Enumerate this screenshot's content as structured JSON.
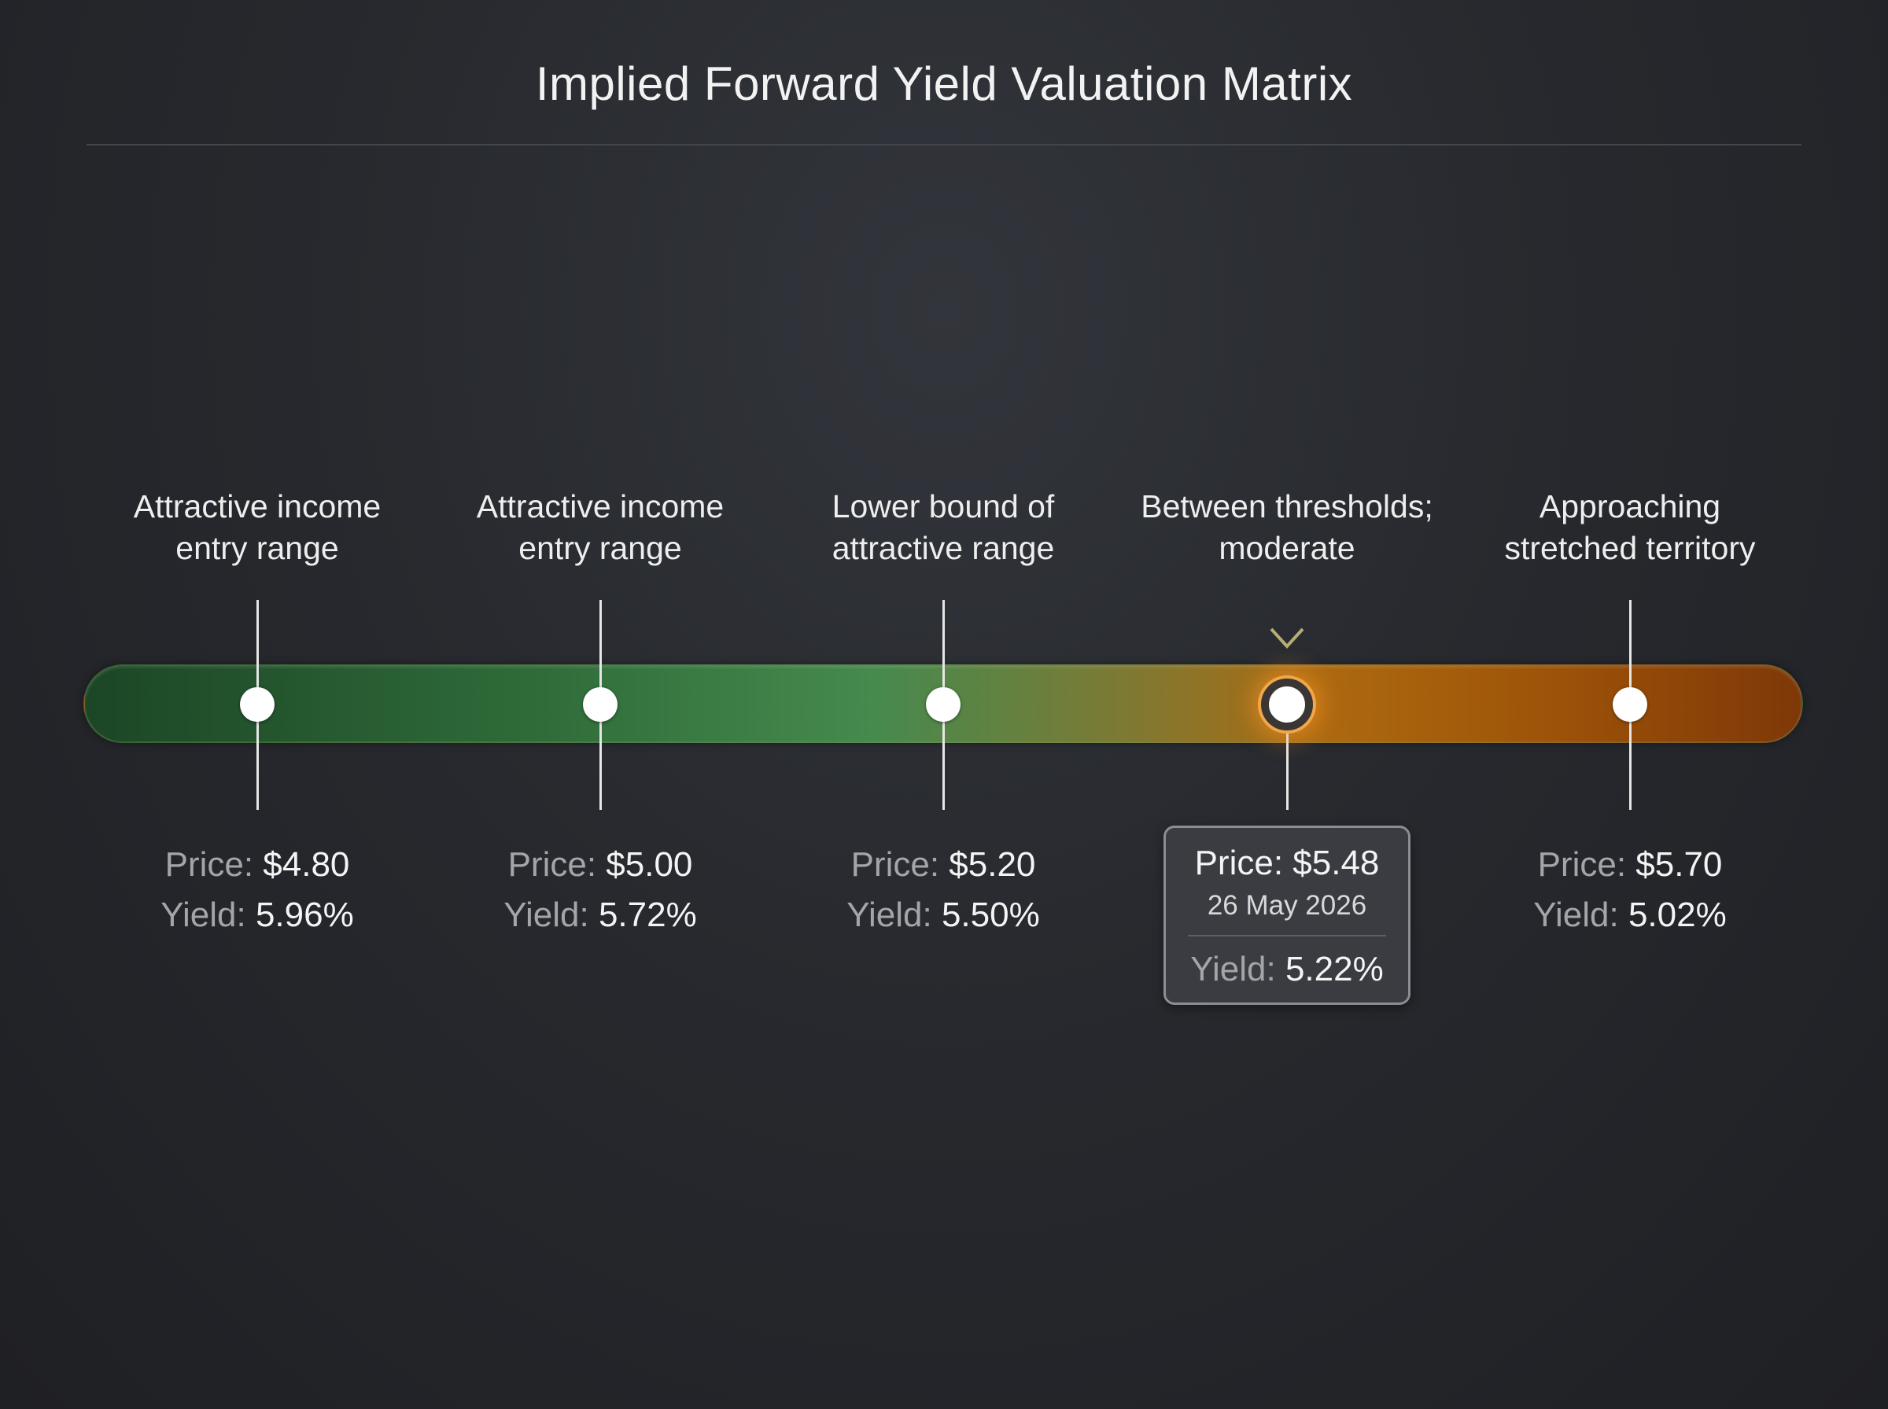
{
  "title": "Implied Forward Yield Valuation Matrix",
  "colors": {
    "background": "#27292e",
    "attractive": "#2f6b39",
    "moderate": "#7b7a35",
    "stretched": "#9c5208",
    "highlight": "#f0a64a"
  },
  "label_price": "Price:",
  "label_yield": "Yield:",
  "stops": [
    {
      "desc_line1": "Attractive income",
      "desc_line2": "entry range",
      "price": "$4.80",
      "yield": "5.96%"
    },
    {
      "desc_line1": "Attractive income",
      "desc_line2": "entry range",
      "price": "$5.00",
      "yield": "5.72%"
    },
    {
      "desc_line1": "Lower bound of",
      "desc_line2": "attractive range",
      "price": "$5.20",
      "yield": "5.50%"
    },
    {
      "desc_line1": "Between thresholds;",
      "desc_line2": "moderate",
      "price": "$5.48",
      "yield": "5.22%",
      "date": "26 May 2026",
      "current": true
    },
    {
      "desc_line1": "Approaching",
      "desc_line2": "stretched territory",
      "price": "$5.70",
      "yield": "5.02%"
    }
  ]
}
